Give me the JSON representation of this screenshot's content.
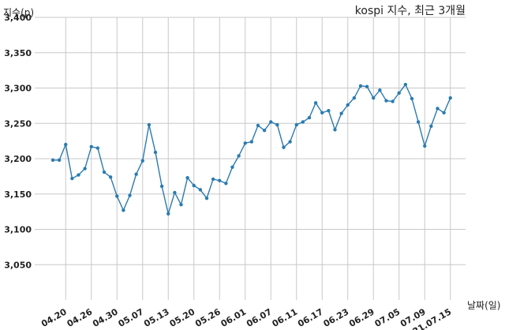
{
  "chart_data": {
    "type": "line",
    "title": "kospi 지수, 최근 3개월",
    "ylabel": "지수(p)",
    "xlabel": "날짜(일)",
    "grid": true,
    "color": "#2b7bb0",
    "ylim": [
      3000,
      3400
    ],
    "yticks": [
      3050,
      3100,
      3150,
      3200,
      3250,
      3300,
      3350,
      3400
    ],
    "ytick_labels": [
      "3,050",
      "3,100",
      "3,150",
      "3,200",
      "3,250",
      "3,300",
      "3,350",
      "3,400"
    ],
    "xtick_labels": [
      "04.20",
      "04.26",
      "04.30",
      "05.07",
      "05.13",
      "05.20",
      "05.26",
      "06.01",
      "06.07",
      "06.11",
      "06.17",
      "06.23",
      "06.29",
      "07.05",
      "07.09",
      "21.07.15"
    ],
    "xtick_positions": [
      2,
      6,
      10,
      14,
      18,
      22,
      26,
      30,
      34,
      38,
      42,
      46,
      50,
      54,
      58,
      62
    ],
    "series": [
      {
        "values": [
          3198,
          3198,
          3220,
          3172,
          3177,
          3186,
          3217,
          3215,
          3181,
          3174,
          3147,
          3127,
          3148,
          3178,
          3197,
          3248,
          3209,
          3161,
          3122,
          3152,
          3135,
          3173,
          3162,
          3156,
          3144,
          3171,
          3169,
          3165,
          3188,
          3204,
          3222,
          3224,
          3247,
          3240,
          3252,
          3248,
          3216,
          3224,
          3248,
          3252,
          3258,
          3279,
          3265,
          3268,
          3241,
          3264,
          3276,
          3286,
          3303,
          3302,
          3286,
          3297,
          3282,
          3281,
          3293,
          3305,
          3285,
          3252,
          3218,
          3246,
          3271,
          3265,
          3286
        ]
      }
    ]
  }
}
